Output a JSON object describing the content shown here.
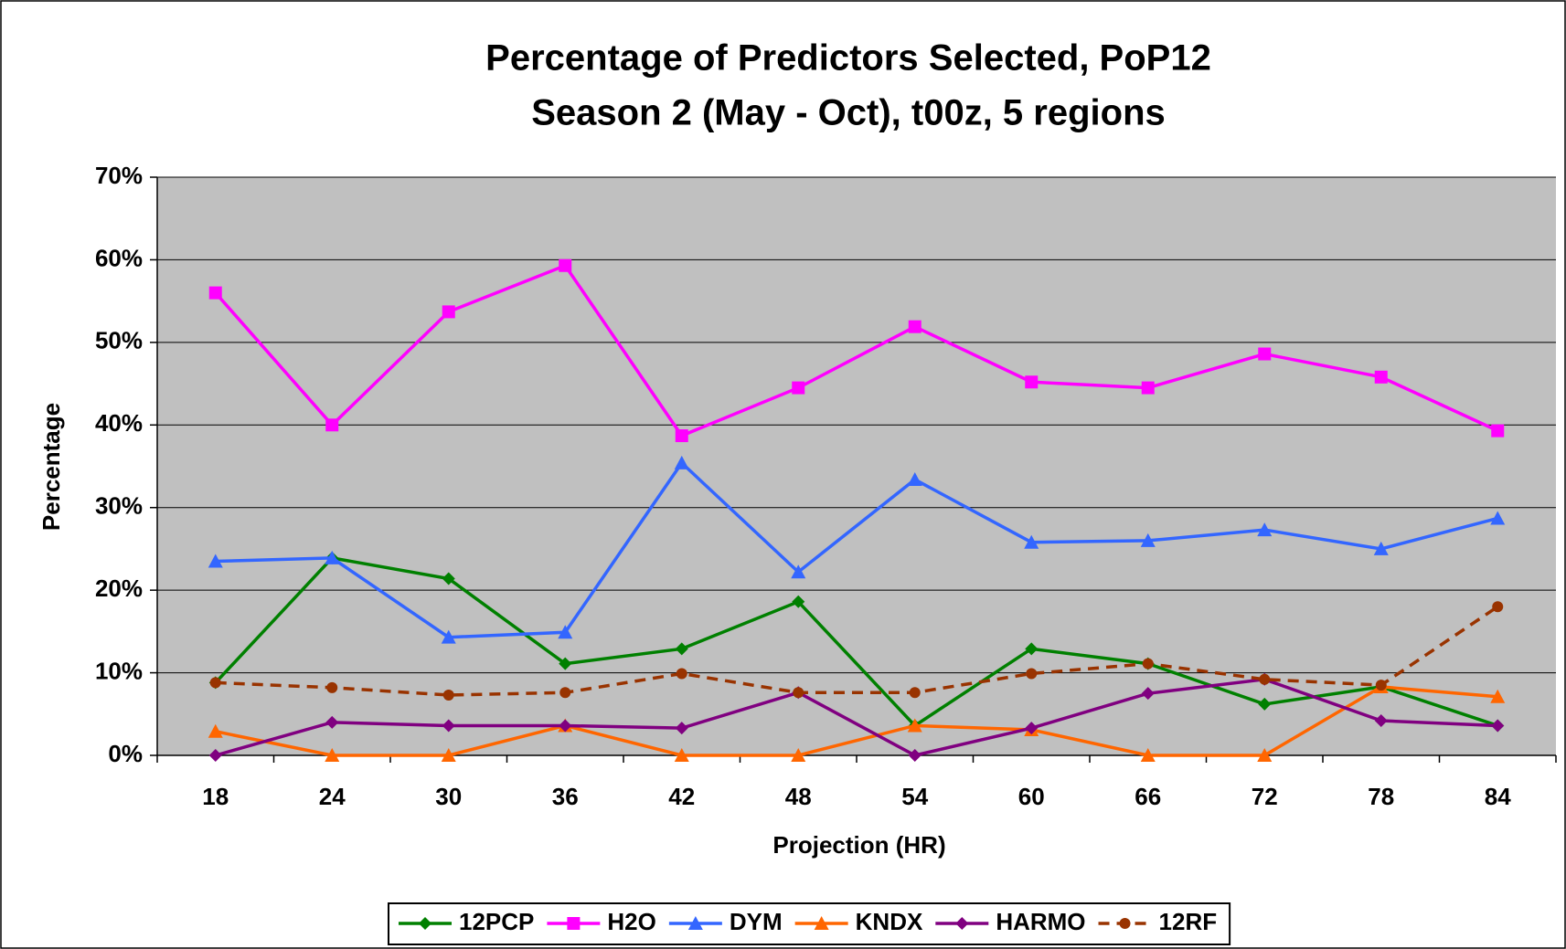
{
  "chart_data": {
    "type": "line",
    "title": [
      "Percentage of Predictors Selected, PoP12",
      "Season 2 (May - Oct), t00z, 5 regions"
    ],
    "x_label": "Projection (HR)",
    "y_label": "Percentage",
    "categories": [
      "18",
      "24",
      "30",
      "36",
      "42",
      "48",
      "54",
      "60",
      "66",
      "72",
      "78",
      "84"
    ],
    "ylim": [
      0,
      70
    ],
    "yticks": [
      {
        "value": 0,
        "label": "0%"
      },
      {
        "value": 10,
        "label": "10%"
      },
      {
        "value": 20,
        "label": "20%"
      },
      {
        "value": 30,
        "label": "30%"
      },
      {
        "value": 40,
        "label": "40%"
      },
      {
        "value": 50,
        "label": "50%"
      },
      {
        "value": 60,
        "label": "60%"
      },
      {
        "value": 70,
        "label": "70%"
      }
    ],
    "grid": true,
    "legend": "bottom",
    "series": [
      {
        "name": "12PCP",
        "color": "#008000",
        "marker": "diamond",
        "values": [
          8.8,
          23.9,
          21.4,
          11.1,
          12.9,
          18.6,
          3.6,
          12.9,
          11.1,
          6.2,
          8.3,
          3.6
        ]
      },
      {
        "name": "H2O",
        "color": "#ff00ff",
        "marker": "square",
        "values": [
          56.0,
          40.0,
          53.7,
          59.3,
          38.7,
          44.5,
          51.9,
          45.2,
          44.5,
          48.6,
          45.8,
          39.3
        ]
      },
      {
        "name": "DYM",
        "color": "#3366ff",
        "marker": "triangle",
        "values": [
          23.5,
          23.9,
          14.3,
          14.9,
          35.4,
          22.2,
          33.4,
          25.8,
          26.0,
          27.3,
          25.0,
          28.7
        ]
      },
      {
        "name": "KNDX",
        "color": "#ff6600",
        "marker": "triangle",
        "values": [
          2.9,
          0,
          0,
          3.6,
          0,
          0,
          3.6,
          3.1,
          0,
          0,
          8.3,
          7.1
        ]
      },
      {
        "name": "HARMO",
        "color": "#800080",
        "marker": "diamond",
        "values": [
          0,
          4.0,
          3.6,
          3.6,
          3.3,
          7.6,
          0,
          3.3,
          7.5,
          9.2,
          4.2,
          3.6
        ]
      },
      {
        "name": "12RF",
        "color": "#993300",
        "marker": "circle",
        "dashed": true,
        "values": [
          8.8,
          8.2,
          7.3,
          7.6,
          9.9,
          7.6,
          7.6,
          9.9,
          11.1,
          9.2,
          8.5,
          18.0
        ]
      }
    ]
  }
}
